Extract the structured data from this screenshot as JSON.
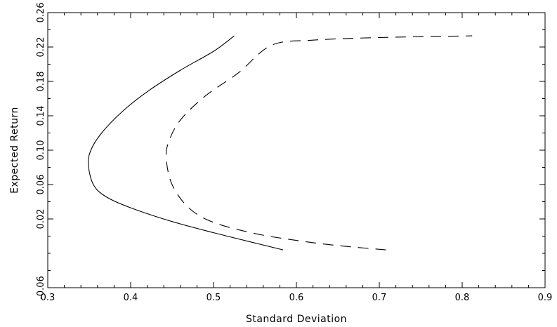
{
  "chart_data": {
    "type": "line",
    "title": "",
    "xlabel": "Standard Deviation",
    "ylabel": "Expected Return",
    "xlim": [
      0.3,
      0.9
    ],
    "ylim": [
      -0.06,
      0.26
    ],
    "x_ticks": [
      0.3,
      0.4,
      0.5,
      0.6,
      0.7,
      0.8,
      0.9
    ],
    "x_tick_labels": [
      "0.3",
      "0.4",
      "0.5",
      "0.6",
      "0.7",
      "0.8",
      "0.9"
    ],
    "y_ticks": [
      -0.06,
      0.02,
      0.06,
      0.1,
      0.14,
      0.18,
      0.22,
      0.26
    ],
    "y_tick_labels": [
      "-0.06",
      "0.02",
      "0.06",
      "0.10",
      "0.14",
      "0.18",
      "0.22",
      "0.26"
    ],
    "grid": false,
    "legend": "none",
    "series": [
      {
        "style": "solid",
        "points": [
          [
            0.584,
            -0.016
          ],
          [
            0.55,
            -0.008
          ],
          [
            0.5,
            0.004
          ],
          [
            0.45,
            0.017
          ],
          [
            0.4,
            0.033
          ],
          [
            0.37,
            0.046
          ],
          [
            0.355,
            0.06
          ],
          [
            0.349,
            0.083
          ],
          [
            0.352,
            0.1
          ],
          [
            0.365,
            0.12
          ],
          [
            0.39,
            0.145
          ],
          [
            0.42,
            0.168
          ],
          [
            0.46,
            0.193
          ],
          [
            0.5,
            0.215
          ],
          [
            0.525,
            0.233
          ]
        ]
      },
      {
        "style": "dashed",
        "points": [
          [
            0.708,
            -0.016
          ],
          [
            0.65,
            -0.011
          ],
          [
            0.6,
            -0.005
          ],
          [
            0.55,
            0.003
          ],
          [
            0.5,
            0.016
          ],
          [
            0.47,
            0.033
          ],
          [
            0.45,
            0.06
          ],
          [
            0.443,
            0.09
          ],
          [
            0.446,
            0.11
          ],
          [
            0.46,
            0.135
          ],
          [
            0.49,
            0.163
          ],
          [
            0.53,
            0.19
          ],
          [
            0.57,
            0.222
          ],
          [
            0.62,
            0.228
          ],
          [
            0.7,
            0.231
          ],
          [
            0.812,
            0.233
          ]
        ]
      }
    ]
  }
}
